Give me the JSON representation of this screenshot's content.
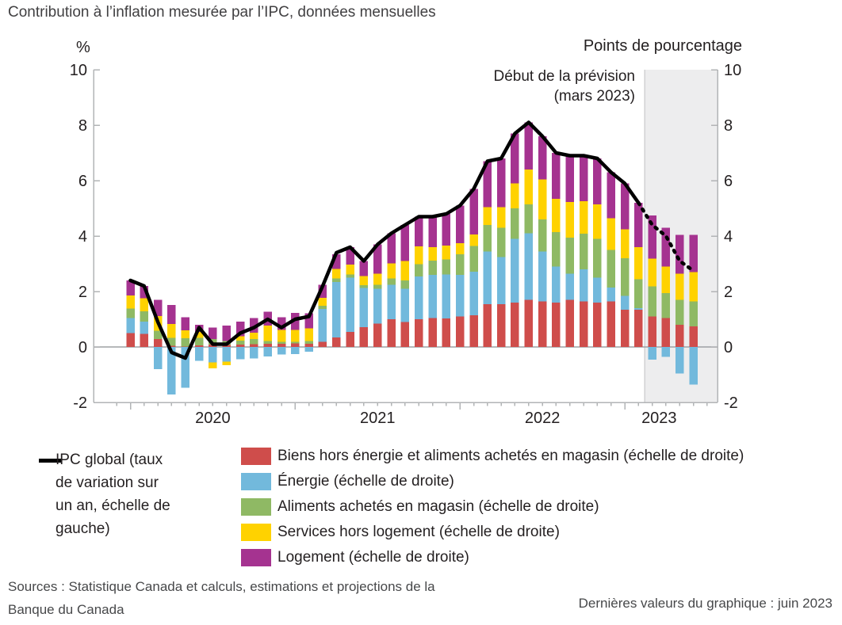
{
  "title": "Contribution à l’inflation mesurée par l’IPC, données mensuelles",
  "axes": {
    "left_unit": "%",
    "right_unit": "Points de pourcentage"
  },
  "annotation": {
    "line1": "Début de la prévision",
    "line2": "(mars 2023)"
  },
  "legend": {
    "line_item": {
      "label": "IPC global (taux de variation sur un an, échelle de gauche)",
      "color": "#000000"
    },
    "items": [
      {
        "label": "Biens hors énergie et aliments achetés en magasin (échelle de droite)",
        "color": "#cf4d4b"
      },
      {
        "label": "Énergie (échelle de droite)",
        "color": "#72b9dc"
      },
      {
        "label": "Aliments achetés en magasin (échelle de droite)",
        "color": "#8fb964"
      },
      {
        "label": "Services hors logement (échelle de droite)",
        "color": "#ffd200"
      },
      {
        "label": "Logement (échelle de droite)",
        "color": "#a53390"
      }
    ]
  },
  "footer": {
    "sources": "Sources : Statistique Canada et calculs, estimations et projections de la Banque du Canada",
    "last_values": "Dernières valeurs du graphique : juin 2023"
  },
  "chart_data": {
    "type": "bar",
    "subtype": "stacked-bars-with-line",
    "x": [
      "2020-01",
      "2020-02",
      "2020-03",
      "2020-04",
      "2020-05",
      "2020-06",
      "2020-07",
      "2020-08",
      "2020-09",
      "2020-10",
      "2020-11",
      "2020-12",
      "2021-01",
      "2021-02",
      "2021-03",
      "2021-04",
      "2021-05",
      "2021-06",
      "2021-07",
      "2021-08",
      "2021-09",
      "2021-10",
      "2021-11",
      "2021-12",
      "2022-01",
      "2022-02",
      "2022-03",
      "2022-04",
      "2022-05",
      "2022-06",
      "2022-07",
      "2022-08",
      "2022-09",
      "2022-10",
      "2022-11",
      "2022-12",
      "2023-01",
      "2023-02",
      "2023-03",
      "2023-04",
      "2023-05",
      "2023-06"
    ],
    "ylabel_left": "%",
    "ylabel_right": "Points de pourcentage",
    "ylim": [
      -2,
      10
    ],
    "yticks": [
      -2,
      0,
      2,
      4,
      6,
      8,
      10
    ],
    "grid": "zero-line-only",
    "series": [
      {
        "name": "Biens hors énergie et aliments achetés en magasin (échelle de droite)",
        "color": "#cf4d4b",
        "values": [
          0.5,
          0.47,
          0.28,
          0.05,
          0.02,
          0.06,
          0.08,
          0.07,
          0.08,
          0.1,
          0.11,
          0.11,
          0.13,
          0.11,
          0.18,
          0.35,
          0.55,
          0.72,
          0.85,
          1.0,
          0.9,
          1.0,
          1.05,
          1.03,
          1.1,
          1.15,
          1.55,
          1.55,
          1.6,
          1.7,
          1.65,
          1.6,
          1.7,
          1.65,
          1.6,
          1.65,
          1.35,
          1.35,
          1.1,
          1.05,
          0.8,
          0.75
        ]
      },
      {
        "name": "Énergie (échelle de droite)",
        "color": "#72b9dc",
        "values": [
          0.55,
          0.45,
          -0.8,
          -1.72,
          -1.47,
          -0.5,
          -0.55,
          -0.53,
          -0.44,
          -0.41,
          -0.34,
          -0.27,
          -0.25,
          -0.17,
          1.19,
          2.0,
          1.95,
          1.41,
          1.25,
          1.25,
          1.2,
          1.55,
          1.55,
          1.58,
          1.5,
          1.57,
          1.9,
          1.7,
          2.3,
          2.4,
          1.8,
          1.3,
          0.95,
          1.15,
          0.9,
          0.5,
          0.5,
          0.05,
          -0.45,
          -0.35,
          -0.95,
          -1.35
        ]
      },
      {
        "name": "Aliments achetés en magasin (échelle de droite)",
        "color": "#8fb964",
        "values": [
          0.33,
          0.36,
          0.3,
          0.28,
          0.3,
          0.27,
          0.2,
          0.15,
          0.15,
          0.18,
          0.11,
          0.08,
          0.05,
          0.11,
          0.11,
          0.12,
          0.12,
          0.1,
          0.15,
          0.22,
          0.3,
          0.43,
          0.52,
          0.55,
          0.75,
          0.92,
          0.95,
          1.05,
          1.1,
          1.05,
          1.15,
          1.25,
          1.3,
          1.28,
          1.4,
          1.35,
          1.35,
          1.05,
          1.08,
          0.9,
          0.9,
          0.9
        ]
      },
      {
        "name": "Services hors logement (échelle de droite)",
        "color": "#ffd200",
        "values": [
          0.48,
          0.48,
          0.54,
          0.5,
          0.28,
          0.22,
          -0.22,
          -0.12,
          0.16,
          0.24,
          0.55,
          0.42,
          0.43,
          0.45,
          0.29,
          0.35,
          0.35,
          0.33,
          0.4,
          0.55,
          0.7,
          0.65,
          0.48,
          0.5,
          0.4,
          0.42,
          0.65,
          0.75,
          0.9,
          1.25,
          1.45,
          1.2,
          1.28,
          1.18,
          1.25,
          1.15,
          1.05,
          1.15,
          1.0,
          0.95,
          0.95,
          1.05
        ]
      },
      {
        "name": "Logement (échelle de droite)",
        "color": "#a53390",
        "values": [
          0.54,
          0.44,
          0.58,
          0.69,
          0.47,
          0.25,
          0.42,
          0.55,
          0.52,
          0.52,
          0.5,
          0.46,
          0.62,
          0.55,
          0.48,
          0.53,
          0.63,
          0.54,
          1.05,
          1.08,
          1.3,
          1.07,
          1.1,
          1.14,
          1.35,
          1.64,
          1.65,
          1.75,
          1.8,
          1.7,
          1.55,
          1.65,
          1.67,
          1.64,
          1.65,
          1.65,
          1.65,
          1.6,
          1.57,
          1.4,
          1.4,
          1.35
        ]
      }
    ],
    "line": {
      "name": "IPC global (taux de variation sur un an, échelle de gauche)",
      "color": "#000000",
      "values": [
        2.4,
        2.2,
        0.9,
        -0.2,
        -0.4,
        0.7,
        0.1,
        0.1,
        0.5,
        0.7,
        1.0,
        0.7,
        1.0,
        1.1,
        2.2,
        3.4,
        3.6,
        3.1,
        3.7,
        4.1,
        4.4,
        4.7,
        4.7,
        4.8,
        5.1,
        5.7,
        6.7,
        6.8,
        7.7,
        8.1,
        7.6,
        7.0,
        6.9,
        6.9,
        6.8,
        6.3,
        5.9,
        5.2,
        4.4,
        4.0,
        3.1,
        2.75
      ],
      "solid_until_index": 37
    },
    "forecast": {
      "label": "Début de la prévision (mars 2023)",
      "start": "2023-03",
      "start_index": 38
    },
    "year_labels": [
      {
        "label": "2020",
        "pos": 6
      },
      {
        "label": "2021",
        "pos": 18
      },
      {
        "label": "2022",
        "pos": 30
      },
      {
        "label": "2023",
        "pos": 38.5
      }
    ],
    "style": {
      "shade_fill": "#ededee",
      "shade_edge": "#c8c9cb",
      "axis_color": "#b2b4b6",
      "zero_line_color": "#9da0a3",
      "tick_label_color": "#231f20",
      "line_width": 4.5,
      "bar_width": 10.5
    },
    "legend_position": "bottom"
  }
}
